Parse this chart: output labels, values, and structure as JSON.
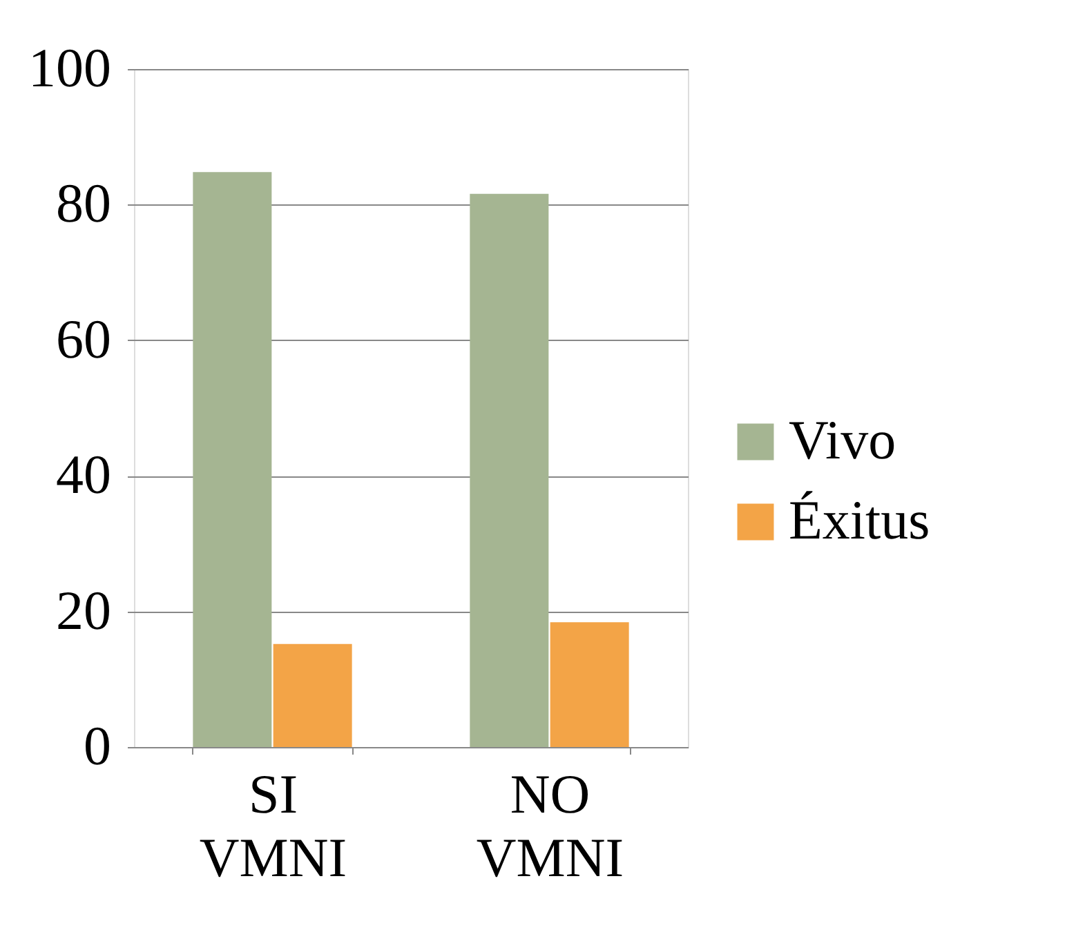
{
  "chart_data": {
    "type": "bar",
    "categories": [
      "SI VMNI",
      "NO VMNI"
    ],
    "series": [
      {
        "name": "Vivo",
        "color": "#a5b592",
        "values": [
          84.8,
          81.6
        ]
      },
      {
        "name": "Éxitus",
        "color": "#f3a447",
        "values": [
          15.2,
          18.4
        ]
      }
    ],
    "ylim": [
      0,
      100
    ],
    "yticks": [
      0,
      20,
      40,
      60,
      80,
      100
    ],
    "grid": "y",
    "legend": "right"
  }
}
